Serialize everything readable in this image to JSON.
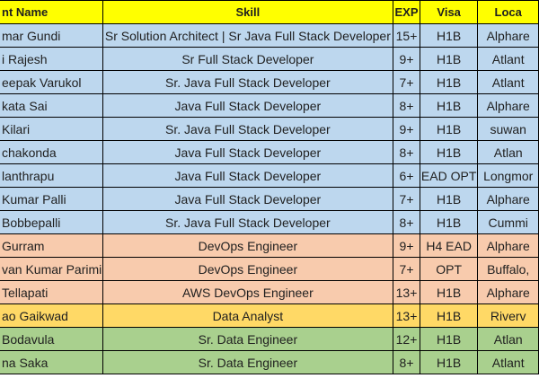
{
  "table": {
    "headers": {
      "name": "nt Name",
      "skill": "Skill",
      "exp": "EXP",
      "visa": "Visa",
      "location": "Loca"
    },
    "rows": [
      {
        "name": "mar Gundi",
        "skill": "Sr Solution Architect | Sr Java Full Stack Developer",
        "exp": "15+",
        "visa": "H1B",
        "location": "Alphare",
        "group": "blue"
      },
      {
        "name": "i Rajesh",
        "skill": "Sr Full Stack Developer",
        "exp": "9+",
        "visa": "H1B",
        "location": "Atlant",
        "group": "blue"
      },
      {
        "name": "eepak Varukol",
        "skill": "Sr. Java Full Stack Developer",
        "exp": "7+",
        "visa": "H1B",
        "location": "Atlant",
        "group": "blue"
      },
      {
        "name": "kata Sai",
        "skill": "Java Full Stack  Developer",
        "exp": "8+",
        "visa": "H1B",
        "location": "Alphare",
        "group": "blue"
      },
      {
        "name": " Kilari",
        "skill": "Sr. Java Full Stack Developer",
        "exp": "9+",
        "visa": "H1B",
        "location": "suwan",
        "group": "blue"
      },
      {
        "name": "chakonda",
        "skill": "Java Full Stack Developer",
        "exp": "8+",
        "visa": "H1B",
        "location": "Atlan",
        "group": "blue"
      },
      {
        "name": "lanthrapu",
        "skill": "Java Full Stack  Developer",
        "exp": "6+",
        "visa": "EAD OPT",
        "location": "Longmor",
        "group": "blue"
      },
      {
        "name": "Kumar Palli",
        "skill": "Java Full Stack  Developer",
        "exp": "7+",
        "visa": "H1B",
        "location": "Alphare",
        "group": "blue"
      },
      {
        "name": " Bobbepalli",
        "skill": "Sr. Java Full Stack Developer",
        "exp": "8+",
        "visa": "H1B",
        "location": "Cummi",
        "group": "blue"
      },
      {
        "name": "Gurram",
        "skill": "DevOps Engineer",
        "exp": "9+",
        "visa": "H4 EAD",
        "location": "Alphare",
        "group": "peach"
      },
      {
        "name": "van Kumar Parimi",
        "skill": "DevOps Engineer",
        "exp": "7+",
        "visa": "OPT",
        "location": "Buffalo, ",
        "group": "peach"
      },
      {
        "name": " Tellapati",
        "skill": "AWS DevOps Engineer",
        "exp": "13+",
        "visa": "H1B",
        "location": "Alphare",
        "group": "peach"
      },
      {
        "name": "ao Gaikwad",
        "skill": "Data Analyst",
        "exp": "13+",
        "visa": "H1B",
        "location": "Riverv",
        "group": "yellow"
      },
      {
        "name": " Bodavula",
        "skill": "Sr. Data Engineer",
        "exp": "12+",
        "visa": "H1B",
        "location": "Atlan",
        "group": "green"
      },
      {
        "name": "na Saka",
        "skill": "Sr. Data Engineer",
        "exp": "8+",
        "visa": "H1B",
        "location": "Atlant",
        "group": "green"
      }
    ]
  },
  "colors": {
    "header": "#ffff00",
    "blue": "#bdd7ee",
    "peach": "#f8cbad",
    "yellow": "#ffd966",
    "green": "#a9d08e"
  }
}
